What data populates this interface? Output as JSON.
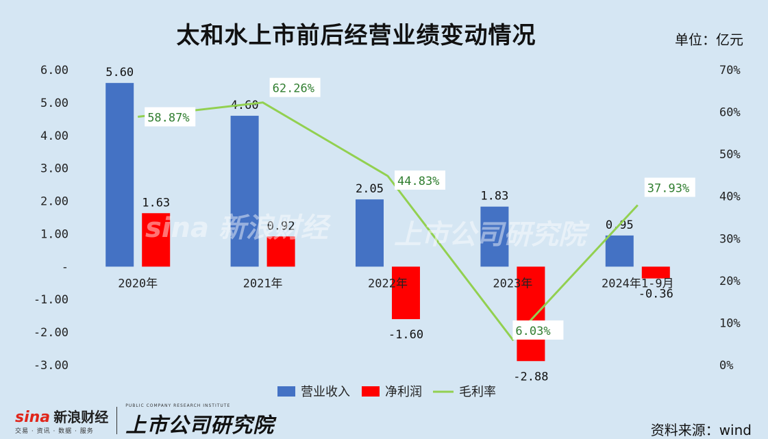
{
  "header": {
    "title": "太和水上市前后经营业绩变动情况",
    "unit": "单位：亿元"
  },
  "footer": {
    "source": "资料来源：wind",
    "sina_logo": "sina",
    "sina_name": "新浪财经",
    "sina_tagline": "交易 · 资讯 · 数据 · 服务",
    "institute_name": "上市公司研究院",
    "institute_en": "PUBLIC COMPANY RESEARCH INSTITUTE"
  },
  "chart_data": {
    "type": "bar",
    "categories": [
      "2020年",
      "2021年",
      "2022年",
      "2023年",
      "2024年1-9月"
    ],
    "series": [
      {
        "name": "营业收入",
        "type": "bar",
        "axis": "left",
        "color": "#4472c4",
        "values": [
          5.6,
          4.6,
          2.05,
          1.83,
          0.95
        ],
        "labels": [
          "5.60",
          "4.60",
          "2.05",
          "1.83",
          "0.95"
        ]
      },
      {
        "name": "净利润",
        "type": "bar",
        "axis": "left",
        "color": "#ff0000",
        "values": [
          1.63,
          0.92,
          -1.6,
          -2.88,
          -0.36
        ],
        "labels": [
          "1.63",
          "0.92",
          "-1.60",
          "-2.88",
          "-0.36"
        ]
      },
      {
        "name": "毛利率",
        "type": "line",
        "axis": "right",
        "color": "#92d050",
        "values": [
          58.87,
          62.26,
          44.83,
          6.03,
          37.93
        ],
        "labels": [
          "58.87%",
          "62.26%",
          "44.83%",
          "6.03%",
          "37.93%"
        ]
      }
    ],
    "y_left": {
      "min": -3,
      "max": 6,
      "ticks": [
        "6.00",
        "5.00",
        "4.00",
        "3.00",
        "2.00",
        "1.00",
        "-",
        "-1.00",
        "-2.00",
        "-3.00"
      ]
    },
    "y_right": {
      "min": 0,
      "max": 70,
      "ticks": [
        "70%",
        "60%",
        "50%",
        "40%",
        "30%",
        "20%",
        "10%",
        "0%"
      ]
    },
    "legend_position": "bottom",
    "grid": false
  }
}
